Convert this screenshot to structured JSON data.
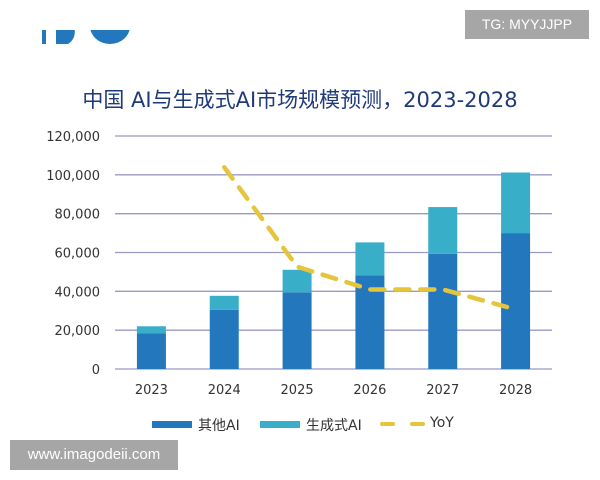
{
  "watermark_top": "TG: MYYJJPP",
  "watermark_bottom": "www.imagodeii.com",
  "colors": {
    "other_ai": "#2378bd",
    "gen_ai": "#38aec9",
    "yoy": "#e6c43c",
    "grid": "#9999c8",
    "title": "#1f3a7a"
  },
  "chart_data": {
    "type": "bar",
    "stacked": true,
    "title": "中国 AI与生成式AI市场规模预测，2023-2028",
    "categories": [
      "2023",
      "2024",
      "2025",
      "2026",
      "2027",
      "2028"
    ],
    "ylim": [
      0,
      120000
    ],
    "yticks": [
      "0",
      "20,000",
      "40,000",
      "60,000",
      "80,000",
      "100,000",
      "120,000"
    ],
    "grid": true,
    "legend_position": "bottom",
    "series": [
      {
        "name": "其他AI",
        "type": "bar",
        "values": [
          18300,
          30500,
          39500,
          48200,
          59300,
          70000
        ]
      },
      {
        "name": "生成式AI",
        "type": "bar",
        "values": [
          3700,
          7200,
          11600,
          17000,
          24100,
          31200
        ]
      },
      {
        "name": "YoY",
        "type": "line",
        "style": "dashed",
        "values": [
          null,
          71,
          36,
          28,
          28,
          21
        ]
      }
    ]
  }
}
